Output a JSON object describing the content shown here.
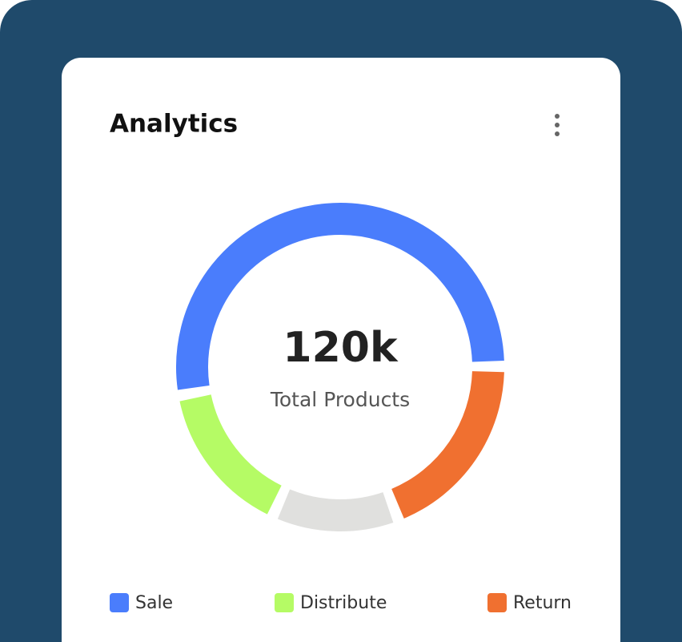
{
  "chart_data": {
    "type": "donut",
    "title": "Analytics",
    "center_value": "120k",
    "center_label": "Total Products",
    "categories": [
      "Sale",
      "Return",
      null,
      "Distribute"
    ],
    "values": [
      54,
      19,
      12,
      15
    ],
    "colors": [
      "#4a7dfc",
      "#f07030",
      "#e0e0de",
      "#b5fb65"
    ]
  }
}
